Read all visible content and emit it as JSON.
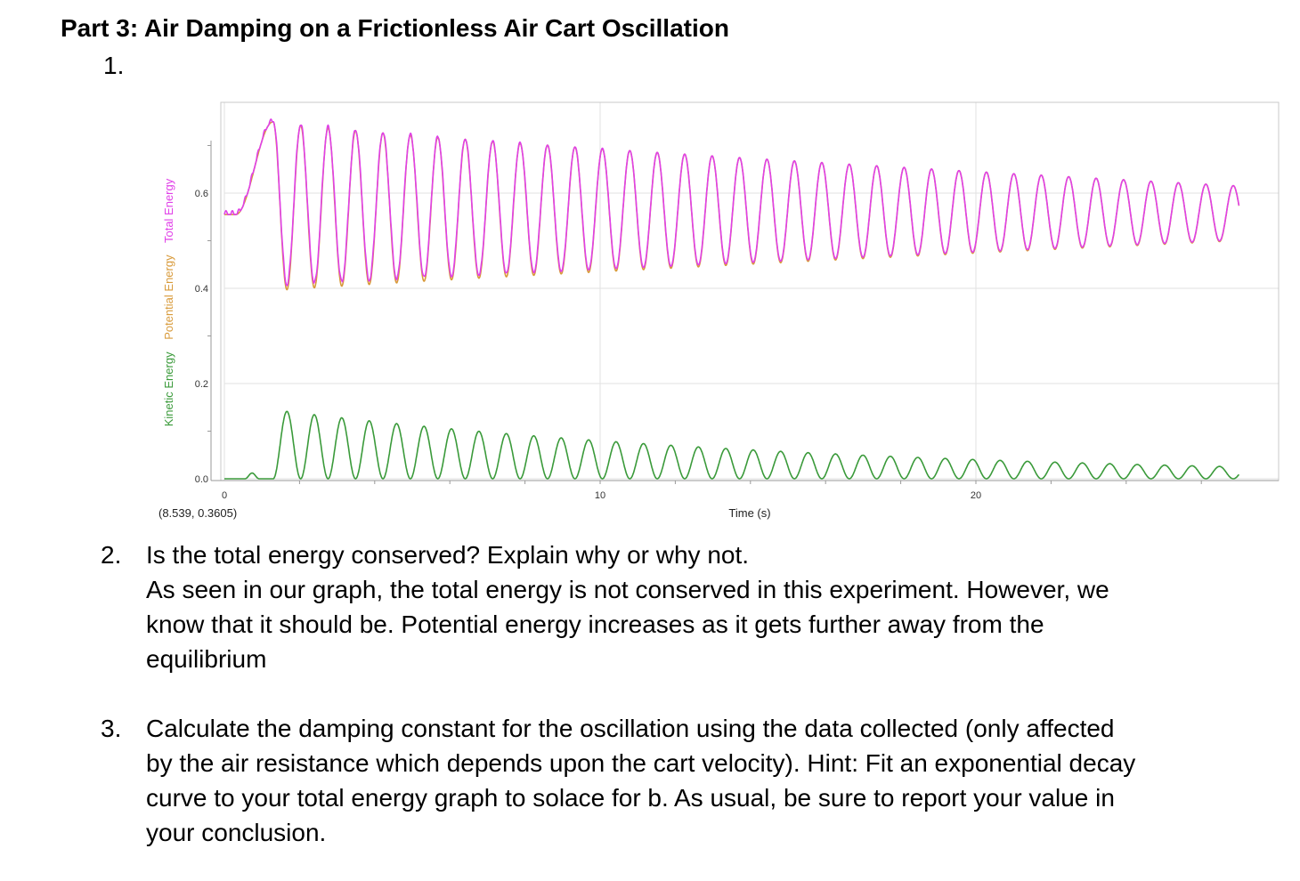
{
  "document": {
    "heading": "Part 3: Air Damping on a Frictionless Air Cart Oscillation",
    "item1_number": "1."
  },
  "chart_data": {
    "type": "line",
    "xlabel": "Time (s)",
    "ylabel_parts": [
      "Kinetic Energy",
      "Potential Energy",
      "Total Energy"
    ],
    "x_ticks": [
      "0",
      "10",
      "20"
    ],
    "y_ticks": [
      "0.0",
      "0.2",
      "0.4",
      "0.6"
    ],
    "xlim": [
      -0.2,
      28
    ],
    "ylim": [
      -0.01,
      0.79
    ],
    "cursor_readout": "(8.539, 0.3605)",
    "grid": true,
    "colors": {
      "kinetic": "#3a9a3a",
      "potential": "#d89a3a",
      "total": "#e040e8"
    },
    "series": [
      {
        "name": "Total Energy",
        "description_points": {
          "start_value": 0.555,
          "first_peak": 0.76,
          "first_trough": 0.395,
          "last_peak": 0.62,
          "last_trough": 0.5
        }
      },
      {
        "name": "Potential Energy",
        "description_points": {
          "first_peak": 0.75,
          "first_trough": 0.395,
          "last_peak": 0.615,
          "last_trough": 0.5
        }
      },
      {
        "name": "Kinetic Energy",
        "description_points": {
          "first_peak": 0.145,
          "last_peak": 0.025,
          "minimum": 0.0
        }
      }
    ],
    "oscillation": {
      "period_s": 1.46,
      "start_time_s": 1.3,
      "end_time_s": 27.0
    }
  },
  "questions": [
    {
      "number": "2.",
      "prompt": "Is the total energy conserved? Explain why or why not.",
      "answer": "As seen in our graph, the total energy is not conserved in this experiment. However, we know that it should be. Potential energy increases as it gets further away from the equilibrium"
    },
    {
      "number": "3.",
      "prompt": "Calculate the damping constant for the oscillation using the data collected (only affected by the air resistance which depends upon the cart velocity). Hint: Fit an exponential decay curve to your total energy graph to solace for b. As usual, be sure to report your value in your conclusion."
    }
  ]
}
